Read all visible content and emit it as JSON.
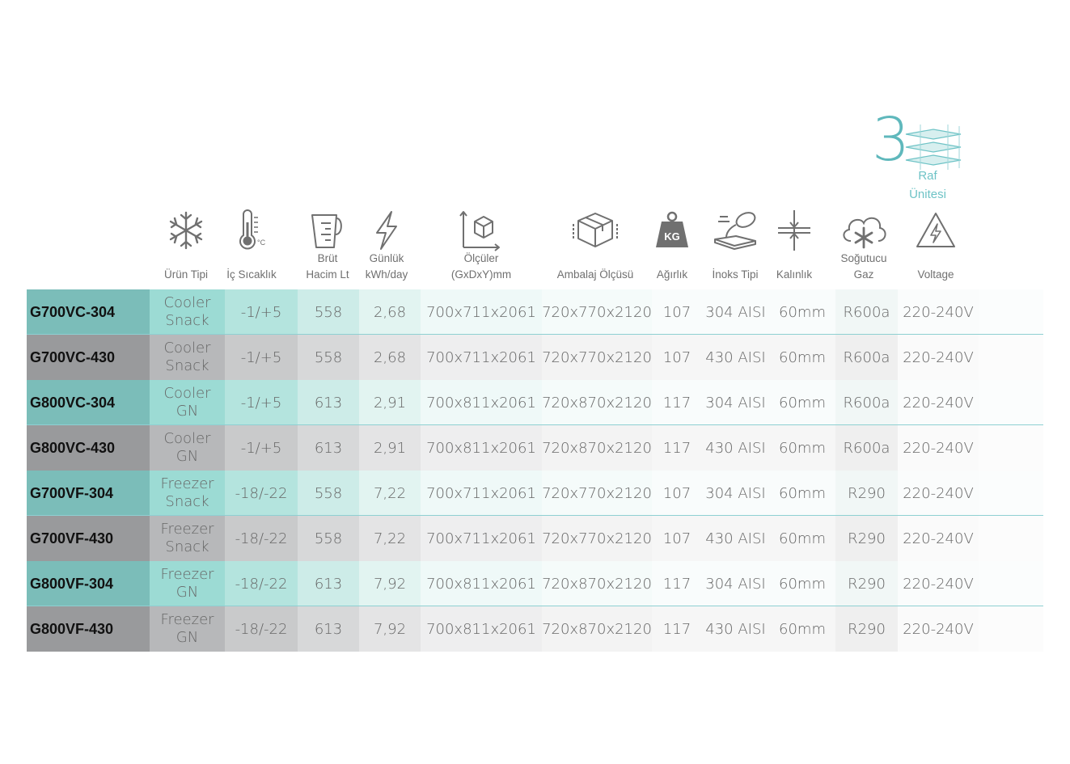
{
  "badge": {
    "number": "3",
    "line1": "Raf",
    "line2": "Ünitesi"
  },
  "columns": [
    {
      "key": "urun_tipi",
      "label": "Ürün Tipi",
      "icon": "snowflake-icon"
    },
    {
      "key": "ic_sicaklik",
      "label": "İç Sıcaklık",
      "icon": "thermometer-icon",
      "unit": "°C"
    },
    {
      "key": "brut_hacim",
      "label": "Brüt Hacim Lt",
      "label_lines": [
        "Brüt",
        "Hacim Lt"
      ],
      "icon": "measuring-jug-icon"
    },
    {
      "key": "gunluk",
      "label": "Günlük kWh/day",
      "label_lines": [
        "Günlük",
        "kWh/day"
      ],
      "icon": "lightning-icon"
    },
    {
      "key": "olculer",
      "label": "Ölçüler (GxDxY)mm",
      "label_lines": [
        "Ölçüler",
        "(GxDxY)mm"
      ],
      "icon": "dimensions-cube-icon"
    },
    {
      "key": "ambalaj",
      "label": "Ambalaj Ölçüsü",
      "icon": "package-box-icon"
    },
    {
      "key": "agirlik",
      "label": "Ağırlık",
      "icon": "weight-kg-icon",
      "icon_text": "KG"
    },
    {
      "key": "inoks",
      "label": "İnoks Tipi",
      "icon": "steel-pour-icon"
    },
    {
      "key": "kalinlik",
      "label": "Kalınlık",
      "icon": "thickness-icon"
    },
    {
      "key": "gaz",
      "label": "Soğutucu Gaz",
      "label_lines": [
        "Soğutucu",
        "Gaz"
      ],
      "icon": "cloud-snow-icon"
    },
    {
      "key": "voltage",
      "label": "Voltage",
      "icon": "high-voltage-icon"
    }
  ],
  "rows": [
    {
      "model": "G700VC-304",
      "type": [
        "Cooler",
        "Snack"
      ],
      "temp": "-1/+5",
      "volume": "558",
      "kwh": "2,68",
      "dims": "700x711x2061",
      "pack": "720x770x2120",
      "weight": "107",
      "steel": "304 AISI",
      "thick": "60mm",
      "gas": "R600a",
      "voltage": "220-240V"
    },
    {
      "model": "G700VC-430",
      "type": [
        "Cooler",
        "Snack"
      ],
      "temp": "-1/+5",
      "volume": "558",
      "kwh": "2,68",
      "dims": "700x711x2061",
      "pack": "720x770x2120",
      "weight": "107",
      "steel": "430 AISI",
      "thick": "60mm",
      "gas": "R600a",
      "voltage": "220-240V"
    },
    {
      "model": "G800VC-304",
      "type": [
        "Cooler",
        "GN"
      ],
      "temp": "-1/+5",
      "volume": "613",
      "kwh": "2,91",
      "dims": "700x811x2061",
      "pack": "720x870x2120",
      "weight": "117",
      "steel": "304 AISI",
      "thick": "60mm",
      "gas": "R600a",
      "voltage": "220-240V"
    },
    {
      "model": "G800VC-430",
      "type": [
        "Cooler",
        "GN"
      ],
      "temp": "-1/+5",
      "volume": "613",
      "kwh": "2,91",
      "dims": "700x811x2061",
      "pack": "720x870x2120",
      "weight": "117",
      "steel": "430 AISI",
      "thick": "60mm",
      "gas": "R600a",
      "voltage": "220-240V"
    },
    {
      "model": "G700VF-304",
      "type": [
        "Freezer",
        "Snack"
      ],
      "temp": "-18/-22",
      "volume": "558",
      "kwh": "7,22",
      "dims": "700x711x2061",
      "pack": "720x770x2120",
      "weight": "107",
      "steel": "304 AISI",
      "thick": "60mm",
      "gas": "R290",
      "voltage": "220-240V"
    },
    {
      "model": "G700VF-430",
      "type": [
        "Freezer",
        "Snack"
      ],
      "temp": "-18/-22",
      "volume": "558",
      "kwh": "7,22",
      "dims": "700x711x2061",
      "pack": "720x770x2120",
      "weight": "107",
      "steel": "430 AISI",
      "thick": "60mm",
      "gas": "R290",
      "voltage": "220-240V"
    },
    {
      "model": "G800VF-304",
      "type": [
        "Freezer",
        "GN"
      ],
      "temp": "-18/-22",
      "volume": "613",
      "kwh": "7,92",
      "dims": "700x811x2061",
      "pack": "720x870x2120",
      "weight": "117",
      "steel": "304 AISI",
      "thick": "60mm",
      "gas": "R290",
      "voltage": "220-240V"
    },
    {
      "model": "G800VF-430",
      "type": [
        "Freezer",
        "GN"
      ],
      "temp": "-18/-22",
      "volume": "613",
      "kwh": "7,92",
      "dims": "700x811x2061",
      "pack": "720x870x2120",
      "weight": "117",
      "steel": "430 AISI",
      "thick": "60mm",
      "gas": "R290",
      "voltage": "220-240V"
    }
  ],
  "colors": {
    "teal_model": "#7bbdb9",
    "grey_model": "#999a9c",
    "accent": "#5fb8bc",
    "divider": "#8ed0d2"
  }
}
